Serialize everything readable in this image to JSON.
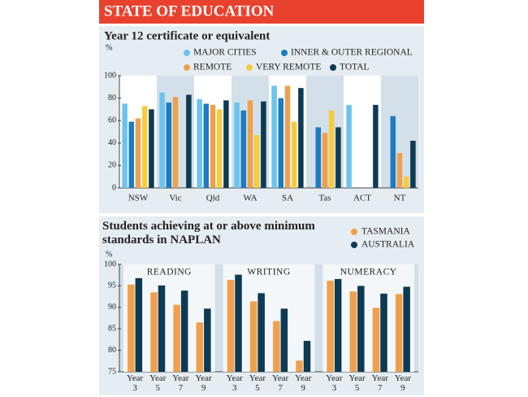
{
  "header": {
    "title": "STATE OF EDUCATION"
  },
  "chart_data": [
    {
      "type": "bar",
      "title": "Year 12 certificate or equivalent",
      "y_label": "%",
      "categories": [
        "NSW",
        "Vic",
        "Qld",
        "WA",
        "SA",
        "Tas",
        "ACT",
        "NT"
      ],
      "series": [
        {
          "name": "MAJOR CITIES",
          "color": "#6cc3ee",
          "values": [
            75,
            85,
            79,
            76,
            91,
            null,
            74,
            null
          ]
        },
        {
          "name": "INNER & OUTER REGIONAL",
          "color": "#1b7cc0",
          "values": [
            59,
            76,
            75,
            69,
            80,
            54,
            null,
            64
          ]
        },
        {
          "name": "REMOTE",
          "color": "#f0a04c",
          "values": [
            62,
            81,
            74,
            78,
            91,
            49,
            null,
            31
          ]
        },
        {
          "name": "VERY REMOTE",
          "color": "#f6cb3e",
          "values": [
            73,
            null,
            70,
            47,
            59,
            69,
            null,
            10
          ]
        },
        {
          "name": "TOTAL",
          "color": "#0d3a54",
          "values": [
            70,
            83,
            78,
            77,
            89,
            54,
            74,
            42
          ]
        }
      ],
      "ylim": [
        0,
        100
      ],
      "yticks": [
        0,
        20,
        40,
        60,
        80,
        100
      ],
      "legend": "top-right"
    },
    {
      "type": "grouped-bar",
      "title": "Students achieving at or above minimum standards in NAPLAN",
      "y_label": "%",
      "groups": [
        {
          "label": "READING",
          "categories": [
            "Year 3",
            "Year 5",
            "Year 7",
            "Year 9"
          ]
        },
        {
          "label": "WRITING",
          "categories": [
            "Year 3",
            "Year 5",
            "Year 7",
            "Year 9"
          ]
        },
        {
          "label": "NUMERACY",
          "categories": [
            "Year 3",
            "Year 5",
            "Year 7",
            "Year 9"
          ]
        }
      ],
      "series": [
        {
          "name": "TASMANIA",
          "color": "#f0a04c",
          "values": [
            95.3,
            93.5,
            90.6,
            86.5,
            96.4,
            91.4,
            86.8,
            77.6,
            96.2,
            93.7,
            89.9,
            93.1
          ]
        },
        {
          "name": "AUSTRALIA",
          "color": "#0d3a54",
          "values": [
            96.8,
            95.1,
            93.9,
            89.7,
            97.6,
            93.3,
            89.7,
            82.2,
            96.6,
            95.0,
            93.2,
            94.8
          ]
        }
      ],
      "ylim": [
        75,
        100
      ],
      "yticks": [
        75,
        80,
        85,
        90,
        95,
        100
      ],
      "legend": "top-right"
    }
  ]
}
